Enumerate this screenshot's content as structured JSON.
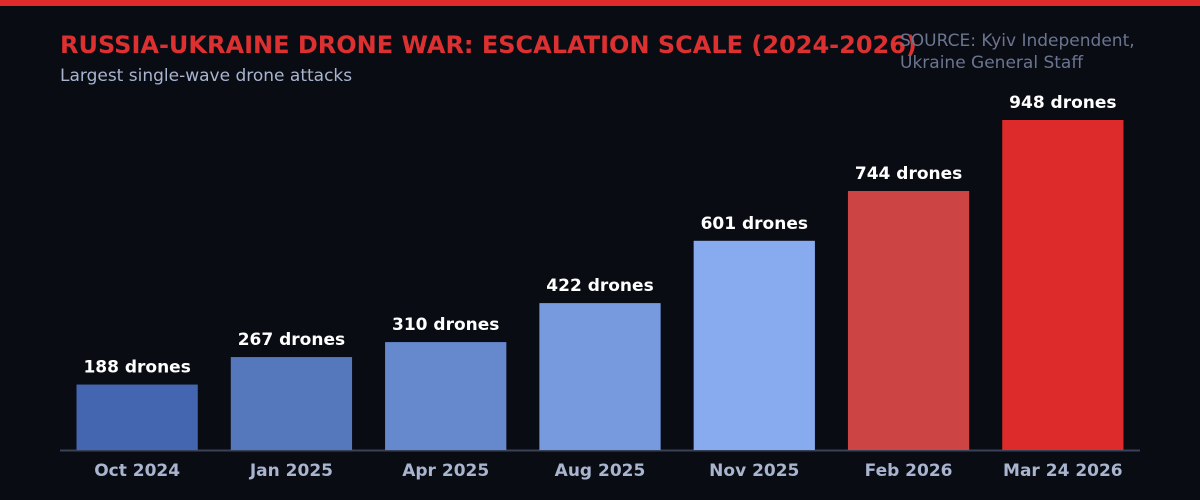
{
  "chart_data": {
    "type": "bar",
    "title": "RUSSIA-UKRAINE DRONE WAR: ESCALATION SCALE (2024-2026)",
    "subtitle": "Largest single-wave drone attacks",
    "source": [
      "SOURCE: Kyiv Independent,",
      "Ukraine General Staff"
    ],
    "categories": [
      "Oct 2024",
      "Jan 2025",
      "Apr 2025",
      "Aug 2025",
      "Nov 2025",
      "Feb 2026",
      "Mar 24 2026"
    ],
    "values": [
      188,
      267,
      310,
      422,
      601,
      744,
      948
    ],
    "value_labels": [
      "188 drones",
      "267 drones",
      "310 drones",
      "422 drones",
      "601 drones",
      "744 drones",
      "948 drones"
    ],
    "colors": [
      "#4466b0",
      "#5577bb",
      "#6688cc",
      "#7799dd",
      "#88aaee",
      "#cc4444",
      "#dd2a2a"
    ]
  }
}
